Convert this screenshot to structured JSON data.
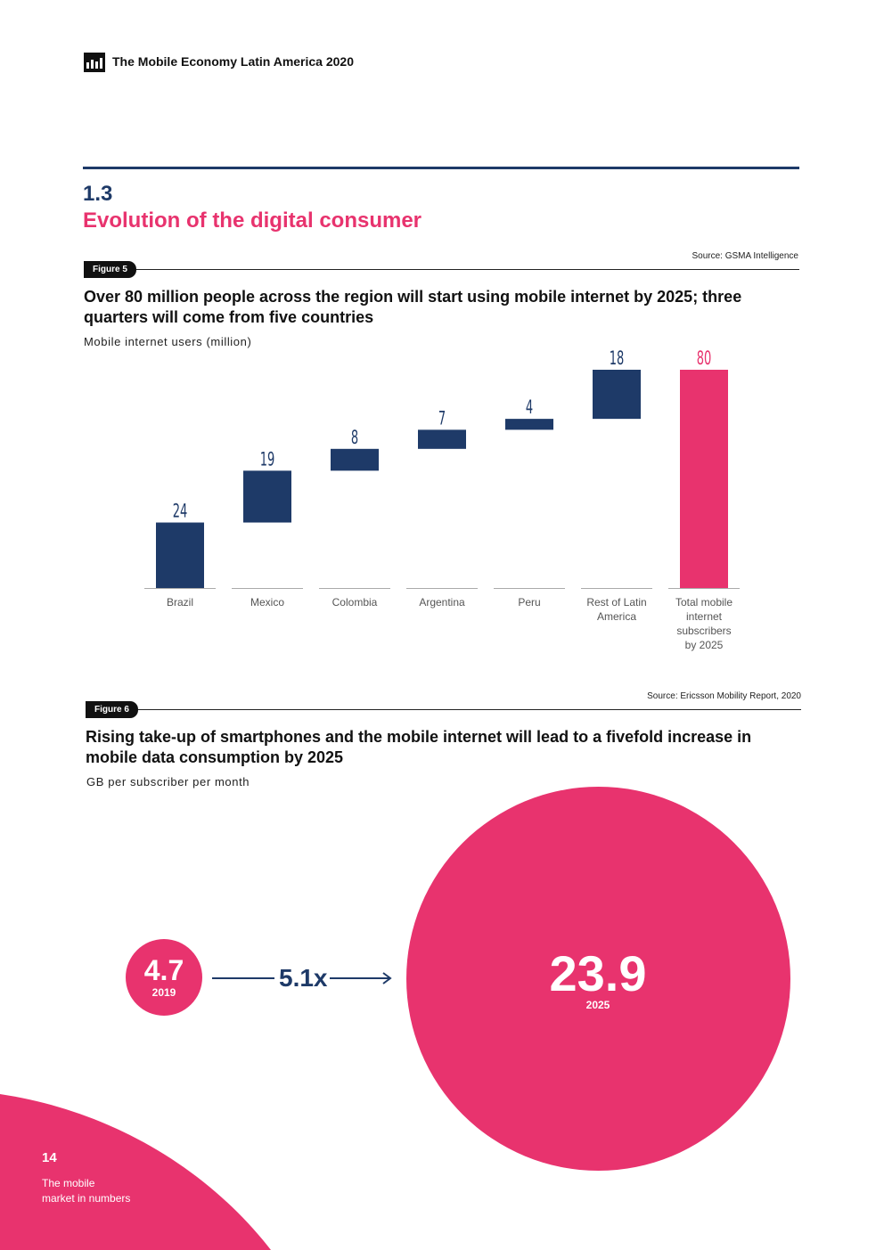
{
  "header": {
    "title": "The Mobile Economy Latin America 2020",
    "logo_icon": "report-logo-icon"
  },
  "section": {
    "number": "1.3",
    "title": "Evolution of the digital consumer"
  },
  "figure5": {
    "label": "Figure 5",
    "source": "Source: GSMA Intelligence",
    "title": "Over 80 million people across the region will start using mobile internet by 2025; three quarters will come from five countries",
    "subtitle": "Mobile internet users (million)"
  },
  "figure6": {
    "label": "Figure 6",
    "source": "Source: Ericsson Mobility Report, 2020",
    "title": "Rising take-up of smartphones and the mobile internet will lead to a fivefold increase in mobile data consumption by 2025",
    "subtitle": "GB per subscriber per month",
    "small": {
      "value": "4.7",
      "year": "2019"
    },
    "large": {
      "value": "23.9",
      "year": "2025"
    },
    "multiplier": "5.1x"
  },
  "footer": {
    "page_number": "14",
    "line1": "The mobile",
    "line2": "market in numbers"
  },
  "colors": {
    "navy": "#1e3a68",
    "pink": "#e8336e"
  },
  "chart_data": [
    {
      "type": "bar",
      "subtype": "waterfall",
      "title": "Over 80 million people across the region will start using mobile internet by 2025; three quarters will come from five countries",
      "ylabel": "Mobile internet users (million)",
      "categories": [
        [
          "Brazil"
        ],
        [
          "Mexico"
        ],
        [
          "Colombia"
        ],
        [
          "Argentina"
        ],
        [
          "Peru"
        ],
        [
          "Rest of Latin",
          "America"
        ],
        [
          "Total mobile",
          "internet",
          "subscribers",
          "by 2025"
        ]
      ],
      "values": [
        24,
        19,
        8,
        7,
        4,
        18,
        80
      ],
      "is_total": [
        false,
        false,
        false,
        false,
        false,
        false,
        true
      ],
      "ylim": [
        0,
        80
      ],
      "grid": false,
      "legend": "none"
    },
    {
      "type": "bubble",
      "title": "Rising take-up of smartphones and the mobile internet will lead to a fivefold increase in mobile data consumption by 2025",
      "ylabel": "GB per subscriber per month",
      "points": [
        {
          "year": "2019",
          "value": 4.7
        },
        {
          "year": "2025",
          "value": 23.9
        }
      ],
      "annotation": "5.1x"
    }
  ]
}
